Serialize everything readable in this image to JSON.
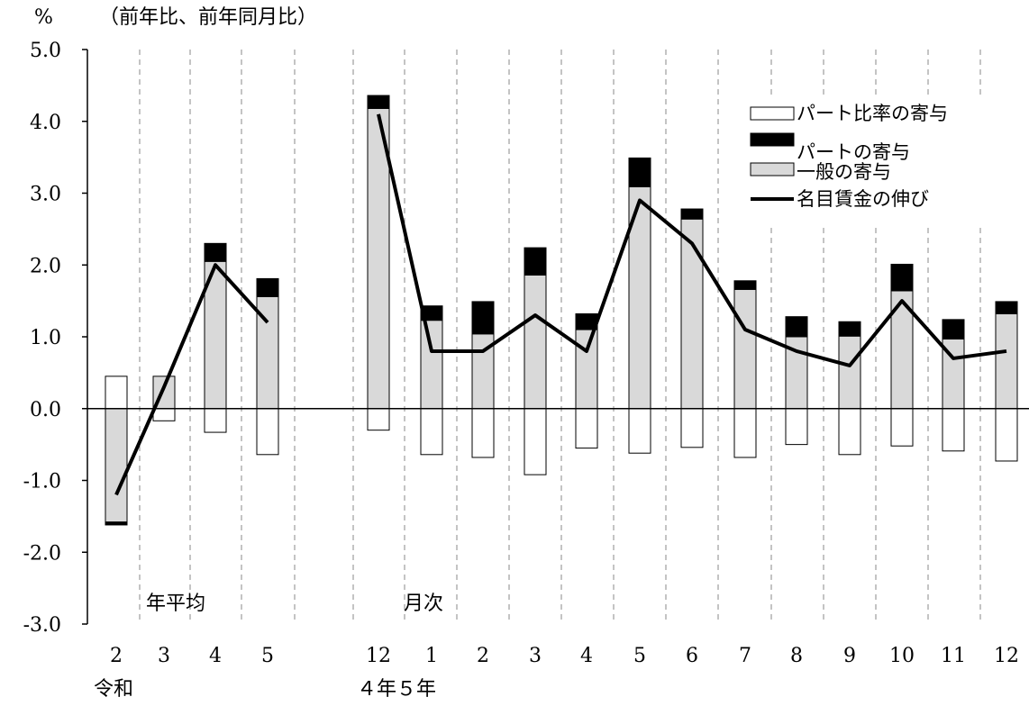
{
  "chart_data": {
    "type": "bar",
    "subtype": "stacked-bar-with-line",
    "title": "",
    "ylabel": "%",
    "subtitle": "（前年比、前年同月比）",
    "ylim": [
      -3.0,
      5.0
    ],
    "yticks": [
      "5.0",
      "4.0",
      "3.0",
      "2.0",
      "1.0",
      "0.0",
      "-1.0",
      "-2.0",
      "-3.0"
    ],
    "ytick_values": [
      5,
      4,
      3,
      2,
      1,
      0,
      -1,
      -2,
      -3
    ],
    "grid": "vertical-dashed",
    "categories": [
      "2",
      "3",
      "4",
      "5",
      "12",
      "1",
      "2",
      "3",
      "4",
      "5",
      "6",
      "7",
      "8",
      "9",
      "10",
      "11",
      "12"
    ],
    "group_labels": {
      "era": "令和",
      "month_years": "４年５年",
      "annual": "年平均",
      "monthly": "月次"
    },
    "series": [
      {
        "name": "パート比率の寄与",
        "kind": "bar",
        "color": "#ffffff",
        "values": [
          0.45,
          -0.17,
          -0.33,
          -0.64,
          -0.3,
          -0.64,
          -0.68,
          -0.92,
          -0.55,
          -0.62,
          -0.54,
          -0.68,
          -0.5,
          -0.64,
          -0.52,
          -0.59,
          -0.73
        ]
      },
      {
        "name": "パートの寄与",
        "kind": "bar",
        "color": "#000000",
        "values": [
          -0.04,
          0.0,
          0.25,
          0.25,
          0.18,
          0.2,
          0.45,
          0.38,
          0.22,
          0.4,
          0.14,
          0.12,
          0.28,
          0.2,
          0.37,
          0.27,
          0.17
        ]
      },
      {
        "name": "一般の寄与",
        "kind": "bar",
        "color": "#d9d9d9",
        "values": [
          -1.58,
          0.45,
          2.05,
          1.56,
          4.18,
          1.23,
          1.04,
          1.86,
          1.1,
          3.09,
          2.64,
          1.66,
          1.0,
          1.01,
          1.64,
          0.97,
          1.32
        ]
      },
      {
        "name": "名目賃金の伸び",
        "kind": "line",
        "color": "#000000",
        "values": [
          -1.2,
          0.3,
          2.0,
          1.2,
          4.1,
          0.8,
          0.8,
          1.3,
          0.8,
          2.9,
          2.3,
          1.1,
          0.8,
          0.6,
          1.5,
          0.7,
          0.8
        ]
      }
    ],
    "legend_position": "top-right"
  }
}
